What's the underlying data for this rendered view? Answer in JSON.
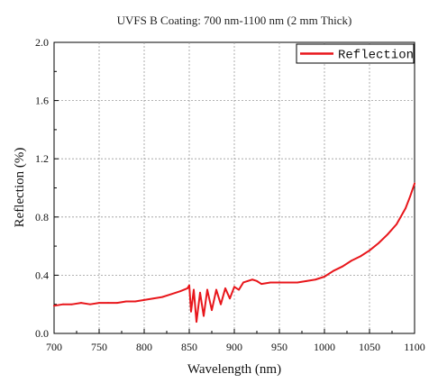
{
  "chart_data": {
    "type": "line",
    "title": "UVFS B Coating: 700 nm-1100 nm (2 mm Thick)",
    "xlabel": "Wavelength (nm)",
    "ylabel": "Reflection (%)",
    "xlim": [
      700,
      1100
    ],
    "ylim": [
      0.0,
      2.0
    ],
    "xticks": [
      700,
      750,
      800,
      850,
      900,
      950,
      1000,
      1050,
      1100
    ],
    "xtick_labels": [
      "700",
      "750",
      "800",
      "850",
      "900",
      "950",
      "1000",
      "1050",
      "1100"
    ],
    "yticks": [
      0.0,
      0.4,
      0.8,
      1.2,
      1.6,
      2.0
    ],
    "ytick_labels": [
      "0.0",
      "0.4",
      "0.8",
      "1.2",
      "1.6",
      "2.0"
    ],
    "grid": true,
    "legend_position": "top-right",
    "series": [
      {
        "name": "Reflection",
        "color": "#e8161b",
        "x": [
          700,
          710,
          720,
          730,
          740,
          750,
          760,
          770,
          780,
          790,
          800,
          810,
          820,
          830,
          840,
          848,
          850,
          852,
          855,
          858,
          862,
          866,
          870,
          875,
          880,
          885,
          890,
          895,
          900,
          905,
          910,
          915,
          920,
          925,
          930,
          940,
          950,
          960,
          970,
          980,
          990,
          1000,
          1010,
          1020,
          1030,
          1040,
          1050,
          1060,
          1070,
          1080,
          1090,
          1095,
          1100
        ],
        "y": [
          0.19,
          0.2,
          0.2,
          0.21,
          0.2,
          0.21,
          0.21,
          0.21,
          0.22,
          0.22,
          0.23,
          0.24,
          0.25,
          0.27,
          0.29,
          0.31,
          0.33,
          0.15,
          0.3,
          0.08,
          0.28,
          0.12,
          0.3,
          0.16,
          0.3,
          0.2,
          0.31,
          0.24,
          0.32,
          0.3,
          0.35,
          0.36,
          0.37,
          0.36,
          0.34,
          0.35,
          0.35,
          0.35,
          0.35,
          0.36,
          0.37,
          0.39,
          0.43,
          0.46,
          0.5,
          0.53,
          0.57,
          0.62,
          0.68,
          0.75,
          0.86,
          0.94,
          1.03
        ]
      }
    ]
  }
}
